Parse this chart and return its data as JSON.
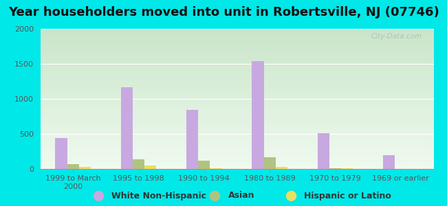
{
  "title": "Year householders moved into unit in Robertsville, NJ (07746)",
  "categories": [
    "1999 to March\n2000",
    "1995 to 1998",
    "1990 to 1994",
    "1980 to 1989",
    "1970 to 1979",
    "1969 or earlier"
  ],
  "white_non_hispanic": [
    440,
    1170,
    840,
    1540,
    510,
    200
  ],
  "asian": [
    70,
    140,
    115,
    165,
    8,
    0
  ],
  "hispanic_or_latino": [
    30,
    45,
    10,
    30,
    5,
    0
  ],
  "bar_width": 0.18,
  "ylim": [
    0,
    2000
  ],
  "yticks": [
    0,
    500,
    1000,
    1500,
    2000
  ],
  "colors": {
    "white_non_hispanic": "#c8a8e0",
    "asian": "#b0c480",
    "hispanic_or_latino": "#e8e060"
  },
  "background_outer": "#00e8e8",
  "legend_labels": [
    "White Non-Hispanic",
    "Asian",
    "Hispanic or Latino"
  ],
  "title_fontsize": 13,
  "tick_fontsize": 8,
  "legend_fontsize": 9,
  "watermark": "City-Data.com"
}
